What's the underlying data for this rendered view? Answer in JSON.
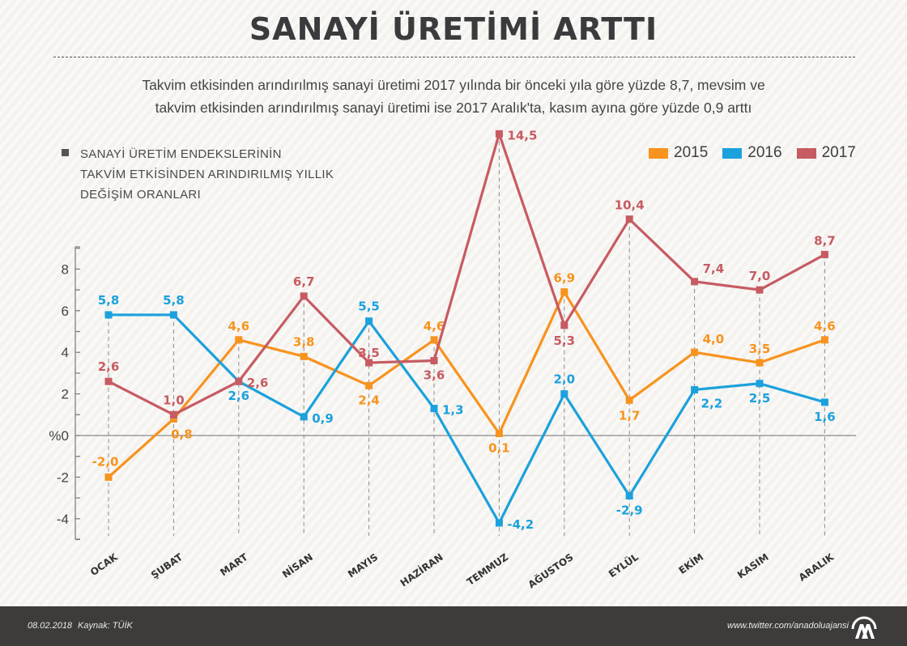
{
  "header": {
    "title": "SANAYİ ÜRETİMİ ARTTI",
    "subtitle_line1": "Takvim etkisinden arındırılmış sanayi üretimi 2017 yılında bir önceki yıla göre yüzde 8,7, mevsim ve",
    "subtitle_line2": "takvim etkisinden arındırılmış sanayi üretimi ise 2017 Aralık'ta, kasım ayına göre yüzde 0,9 arttı"
  },
  "chart_heading": {
    "line1": "SANAYİ ÜRETİM ENDEKSLERİNİN",
    "line2": "TAKVİM ETKİSİNDEN ARINDIRILMIŞ YILLIK",
    "line3": "DEĞİŞİM ORANLARI"
  },
  "legend": [
    {
      "label": "2015",
      "color": "#f7931e"
    },
    {
      "label": "2016",
      "color": "#1ba1dc"
    },
    {
      "label": "2017",
      "color": "#c75b62"
    }
  ],
  "chart_data": {
    "type": "line",
    "title": "SANAYİ ÜRETİM ENDEKSLERİNİN TAKVİM ETKİSİNDEN ARINDIRILMIŞ YILLIK DEĞİŞİM ORANLARI",
    "xlabel": "",
    "ylabel": "%",
    "categories": [
      "OCAK",
      "ŞUBAT",
      "MART",
      "NİSAN",
      "MAYIS",
      "HAZİRAN",
      "TEMMUZ",
      "AĞUSTOS",
      "EYLÜL",
      "EKİM",
      "KASIM",
      "ARALIK"
    ],
    "ylim": [
      -5,
      9
    ],
    "yticks": [
      8,
      6,
      4,
      2,
      0,
      -2,
      -4
    ],
    "ytick_labels": [
      "8",
      "6",
      "4",
      "2",
      "%0",
      "-2",
      "-4"
    ],
    "grid": false,
    "legend_position": "top-right",
    "series": [
      {
        "name": "2015",
        "color": "#f7931e",
        "values": [
          -2.0,
          0.8,
          4.6,
          3.8,
          2.4,
          4.6,
          0.1,
          6.9,
          1.7,
          4.0,
          3.5,
          4.6
        ],
        "labels": [
          "-2,0",
          "0,8",
          "4,6",
          "3,8",
          "2,4",
          "4,6",
          "0,1",
          "6,9",
          "1,7",
          "4,0",
          "3,5",
          "4,6"
        ]
      },
      {
        "name": "2016",
        "color": "#1ba1dc",
        "values": [
          5.8,
          5.8,
          2.6,
          0.9,
          5.5,
          1.3,
          -4.2,
          2.0,
          -2.9,
          2.2,
          2.5,
          1.6
        ],
        "labels": [
          "5,8",
          "5,8",
          "2,6",
          "0,9",
          "5,5",
          "1,3",
          "-4,2",
          "2,0",
          "-2,9",
          "2,2",
          "2,5",
          "1,6"
        ]
      },
      {
        "name": "2017",
        "color": "#c75b62",
        "values": [
          2.6,
          1.0,
          2.6,
          6.7,
          3.5,
          3.6,
          14.5,
          5.3,
          10.4,
          7.4,
          7.0,
          8.7
        ],
        "labels": [
          "2,6",
          "1,0",
          "2,6",
          "6,7",
          "3,5",
          "3,6",
          "14,5",
          "5,3",
          "10,4",
          "7,4",
          "7,0",
          "8,7"
        ]
      }
    ]
  },
  "footer": {
    "date": "08.02.2018",
    "source": "Kaynak: TÜİK",
    "url": "www.twitter.com/anadoluajansi",
    "logo": "anadolu-ajansi-logo"
  }
}
